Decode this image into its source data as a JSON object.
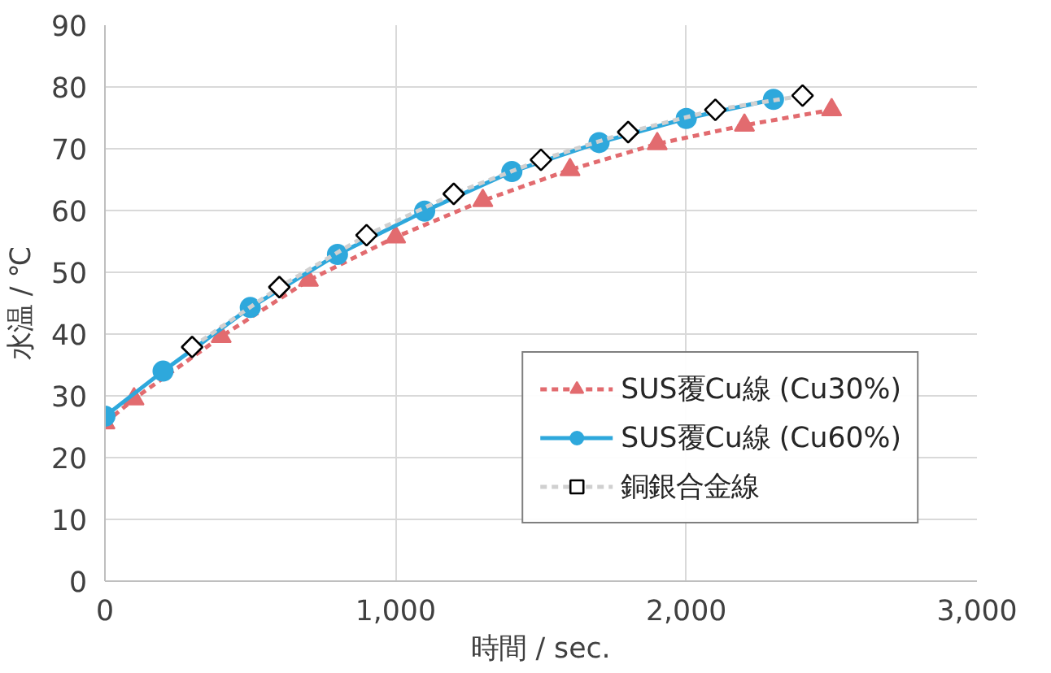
{
  "chart_data": {
    "type": "line",
    "xlabel": "時間 / sec.",
    "ylabel": "水温 / ℃",
    "xlim": [
      0,
      3000
    ],
    "ylim": [
      0,
      90
    ],
    "xticks": [
      0,
      {
        "value": 1000,
        "label": "1,000"
      },
      {
        "value": 2000,
        "label": "2,000"
      },
      {
        "value": 3000,
        "label": "3,000"
      }
    ],
    "yticks": [
      0,
      10,
      20,
      30,
      40,
      50,
      60,
      70,
      80,
      90
    ],
    "grid": true,
    "legend": "bottom right",
    "series": [
      {
        "name": "SUS覆Cu線 (Cu30%)",
        "color": "#e26b6f",
        "marker": "triangle",
        "line_style": "dashed",
        "x": [
          0,
          100,
          400,
          700,
          1000,
          1300,
          1600,
          1900,
          2200,
          2500
        ],
        "values": [
          25.6,
          29.5,
          39.6,
          48.7,
          55.7,
          61.6,
          66.6,
          70.8,
          73.8,
          76.3
        ]
      },
      {
        "name": "SUS覆Cu線 (Cu60%)",
        "color": "#2ea8dc",
        "marker": "circle",
        "line_style": "solid",
        "x": [
          0,
          200,
          500,
          800,
          1100,
          1400,
          1700,
          2000,
          2300
        ],
        "values": [
          26.7,
          34,
          44.3,
          52.9,
          59.9,
          66.3,
          71,
          74.9,
          78
        ]
      },
      {
        "name": "銅銀合金線",
        "color": "#d0d0d0",
        "marker": "diamond",
        "line_style": "dashed",
        "x": [
          300,
          600,
          900,
          1200,
          1500,
          1800,
          2100,
          2400
        ],
        "values": [
          37.9,
          47.6,
          56,
          62.7,
          68.2,
          72.7,
          76.3,
          78.6
        ]
      }
    ]
  }
}
